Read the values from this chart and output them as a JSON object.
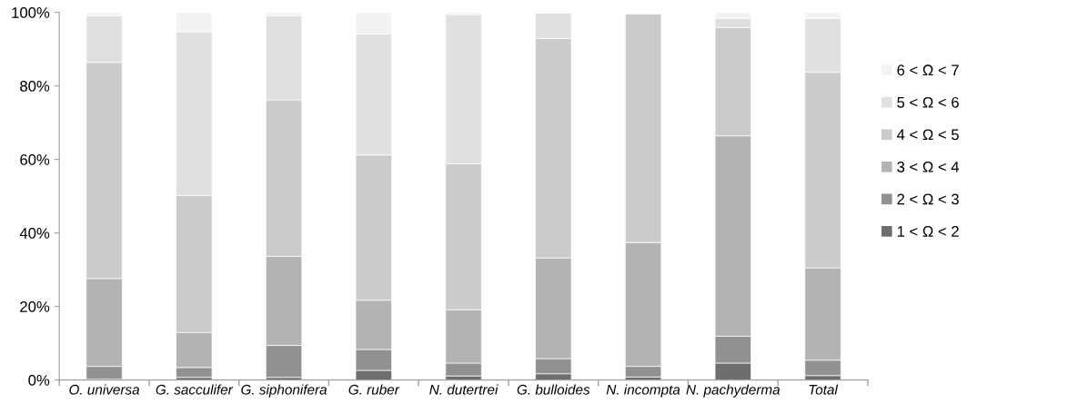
{
  "chart_data": {
    "type": "bar",
    "stacked": true,
    "categories": [
      "O. universa",
      "G. sacculifer",
      "G. siphonifera",
      "G. ruber",
      "N. dutertrei",
      "G. bulloides",
      "N. incompta",
      "N. pachyderma",
      "Total"
    ],
    "series": [
      {
        "name": "1 < Ω < 2",
        "color": "#6e6e6e",
        "values": [
          0.2,
          0.7,
          0.7,
          2.6,
          1.1,
          1.7,
          0.8,
          4.6,
          1.2
        ]
      },
      {
        "name": "2 < Ω < 3",
        "color": "#919191",
        "values": [
          3.5,
          2.7,
          8.7,
          5.7,
          3.5,
          4.1,
          2.9,
          7.3,
          4.2
        ]
      },
      {
        "name": "3 < Ω < 4",
        "color": "#b3b3b3",
        "values": [
          23.9,
          9.5,
          24.2,
          13.4,
          14.5,
          27.4,
          33.7,
          54.5,
          25.1
        ]
      },
      {
        "name": "4 < Ω < 5",
        "color": "#cbcbcb",
        "values": [
          58.8,
          37.3,
          42.6,
          39.5,
          39.7,
          59.7,
          62.2,
          29.5,
          53.2
        ]
      },
      {
        "name": "5 < Ω < 6",
        "color": "#e0e0e0",
        "values": [
          12.7,
          44.5,
          22.9,
          32.9,
          40.6,
          6.9,
          0.2,
          2.5,
          14.7
        ]
      },
      {
        "name": "6 < Ω < 7",
        "color": "#f3f3f3",
        "values": [
          0.8,
          5.3,
          0.9,
          5.9,
          0.6,
          0.2,
          0.2,
          1.6,
          1.6
        ]
      }
    ],
    "ylim": [
      0,
      100
    ],
    "yticks": [
      {
        "value": 0,
        "label": "0%"
      },
      {
        "value": 20,
        "label": "20%"
      },
      {
        "value": 40,
        "label": "40%"
      },
      {
        "value": 60,
        "label": "60%"
      },
      {
        "value": 80,
        "label": "80%"
      },
      {
        "value": 100,
        "label": "100%"
      }
    ],
    "grid": false,
    "legend": "right"
  }
}
